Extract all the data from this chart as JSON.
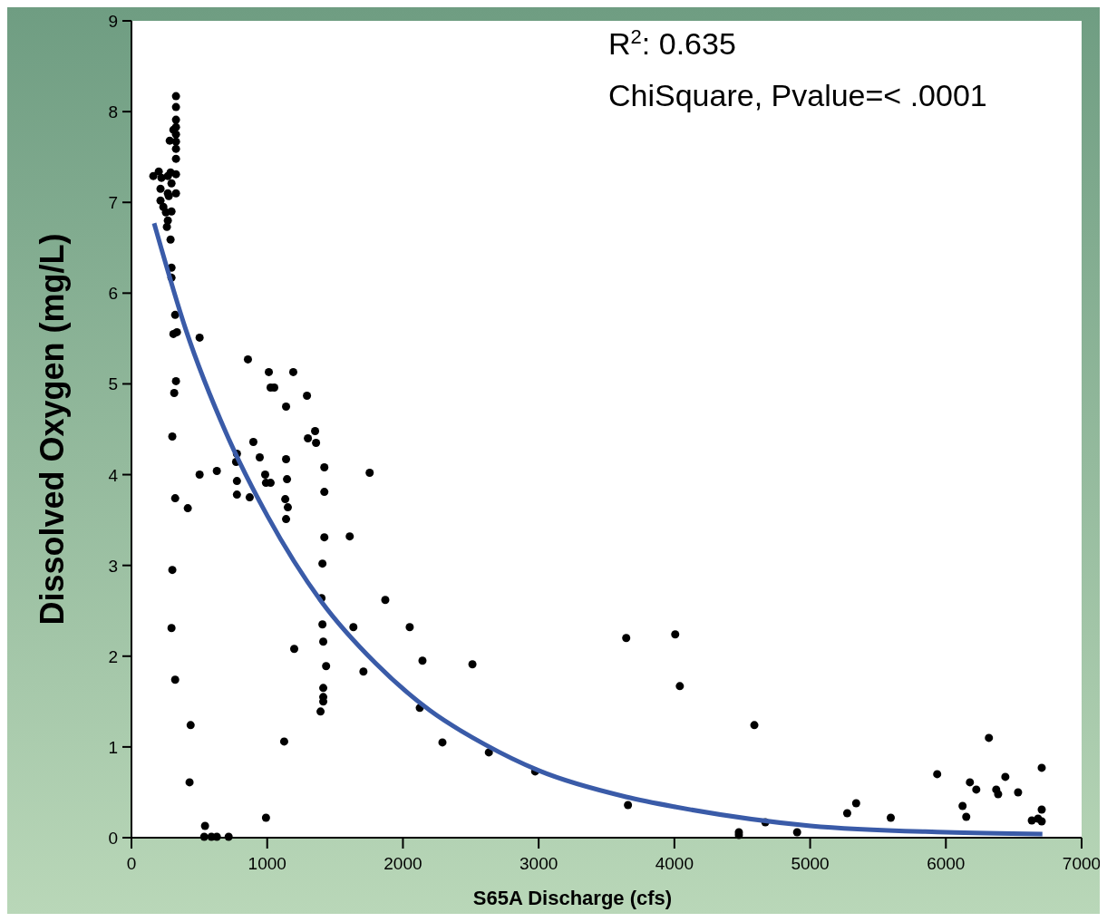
{
  "chart_data": {
    "type": "scatter",
    "xlabel": "S65A Discharge (cfs)",
    "ylabel": "Dissolved Oxygen (mg/L)",
    "annotations": [
      "R$^{2}$: 0.635",
      "ChiSquare, Pvalue=< .0001"
    ],
    "xlim": [
      0,
      7000
    ],
    "xticks": [
      0,
      1000,
      2000,
      3000,
      4000,
      5000,
      6000,
      7000
    ],
    "ylim": [
      0,
      9
    ],
    "yticks": [
      0,
      1,
      2,
      3,
      4,
      5,
      6,
      7,
      8,
      9
    ],
    "grid": false,
    "series": [
      {
        "type": "scatter",
        "color": "#000000",
        "marker": "circle",
        "x": [
          161,
          201,
          221,
          214,
          214,
          235,
          254,
          268,
          268,
          275,
          261,
          268,
          282,
          288,
          295,
          295,
          288,
          295,
          295,
          309,
          328,
          328,
          328,
          328,
          328,
          328,
          328,
          328,
          328,
          328,
          309,
          322,
          335,
          328,
          315,
          301,
          322,
          301,
          295,
          322,
          502,
          502,
          415,
          629,
          436,
          428,
          542,
          536,
          589,
          629,
          716,
          991,
          858,
          1012,
          1025,
          1052,
          1192,
          1293,
          1139,
          898,
          945,
          777,
          771,
          777,
          777,
          871,
          985,
          991,
          1025,
          1139,
          1146,
          1133,
          1152,
          1139,
          1300,
          1353,
          1360,
          1421,
          1421,
          1755,
          1421,
          1608,
          1407,
          1400,
          1407,
          1635,
          1870,
          2050,
          1413,
          1434,
          1199,
          1709,
          1413,
          1413,
          1413,
          1393,
          1125,
          2144,
          2512,
          2124,
          2291,
          2633,
          2974,
          3645,
          4006,
          4040,
          3658,
          4589,
          4475,
          4475,
          4670,
          4904,
          5273,
          5339,
          5594,
          5936,
          6123,
          6150,
          6177,
          6224,
          6317,
          6371,
          6385,
          6438,
          6532,
          6633,
          6679,
          6706,
          6706,
          6706
        ],
        "values": [
          7.29,
          7.34,
          7.27,
          7.15,
          7.02,
          6.95,
          6.89,
          7.1,
          7.29,
          7.07,
          6.73,
          6.8,
          7.68,
          7.33,
          7.21,
          6.9,
          6.59,
          6.28,
          6.17,
          7.8,
          8.17,
          8.05,
          7.91,
          7.83,
          7.75,
          7.67,
          7.59,
          7.48,
          7.31,
          7.1,
          5.55,
          5.76,
          5.57,
          5.03,
          4.9,
          4.42,
          3.74,
          2.95,
          2.31,
          1.74,
          5.51,
          4.0,
          3.63,
          4.04,
          1.24,
          0.61,
          0.13,
          0.01,
          0.01,
          0.01,
          0.01,
          0.22,
          5.27,
          5.13,
          4.96,
          4.96,
          5.13,
          4.87,
          4.75,
          4.36,
          4.19,
          4.23,
          4.14,
          3.93,
          3.78,
          3.75,
          4.0,
          3.91,
          3.91,
          4.17,
          3.95,
          3.73,
          3.64,
          3.51,
          4.4,
          4.48,
          4.35,
          4.08,
          3.81,
          4.02,
          3.31,
          3.32,
          3.02,
          2.64,
          2.35,
          2.32,
          2.62,
          2.32,
          2.16,
          1.89,
          2.08,
          1.83,
          1.65,
          1.55,
          1.5,
          1.39,
          1.06,
          1.95,
          1.91,
          1.43,
          1.05,
          0.94,
          0.73,
          2.2,
          2.24,
          1.67,
          0.36,
          1.24,
          0.06,
          0.03,
          0.17,
          0.06,
          0.27,
          0.38,
          0.22,
          0.7,
          0.35,
          0.23,
          0.61,
          0.53,
          1.1,
          0.53,
          0.48,
          0.67,
          0.5,
          0.19,
          0.21,
          0.18,
          0.77,
          0.31
        ]
      },
      {
        "type": "line",
        "color": "#3a5ba8",
        "marker": "none",
        "line_style": "solid",
        "x": [
          167,
          400,
          700,
          1000,
          1400,
          1800,
          2200,
          2600,
          3000,
          3644,
          4005,
          5003,
          6001,
          6711
        ],
        "values": [
          6.77,
          5.6,
          4.45,
          3.55,
          2.6,
          1.92,
          1.4,
          1.03,
          0.74,
          0.45,
          0.34,
          0.13,
          0.06,
          0.04
        ]
      }
    ]
  }
}
